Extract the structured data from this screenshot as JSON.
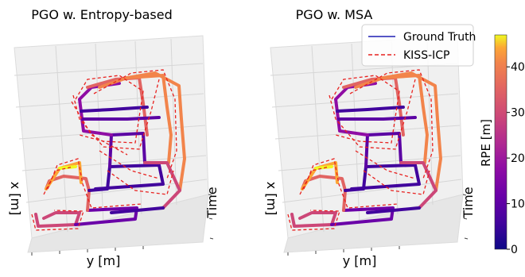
{
  "chart_data": {
    "type": "3d-trajectory",
    "panels": [
      {
        "title": "PGO w. Entropy-based",
        "xlabel": "y [m]",
        "ylabel": "x [m]",
        "zlabel": "Time"
      },
      {
        "title": "PGO w. MSA",
        "xlabel": "y [m]",
        "ylabel": "x [m]",
        "zlabel": "Time"
      }
    ],
    "legend": {
      "placement": "top-right",
      "entries": [
        {
          "label": "Ground Truth",
          "color": "#1f1fb4",
          "style": "solid"
        },
        {
          "label": "KISS-ICP",
          "color": "#e8211f",
          "style": "dashed"
        }
      ]
    },
    "colorbar": {
      "label": "RPE [m]",
      "colormap": "plasma",
      "range": [
        0,
        47
      ],
      "ticks": [
        0,
        10,
        20,
        30,
        40
      ]
    },
    "grid": true
  },
  "colors": {
    "ground_truth": "#1f1fb4",
    "kiss_icp": "#e8211f",
    "pane": "#f2f2f2",
    "pane_grid": "#d9d9d9"
  }
}
